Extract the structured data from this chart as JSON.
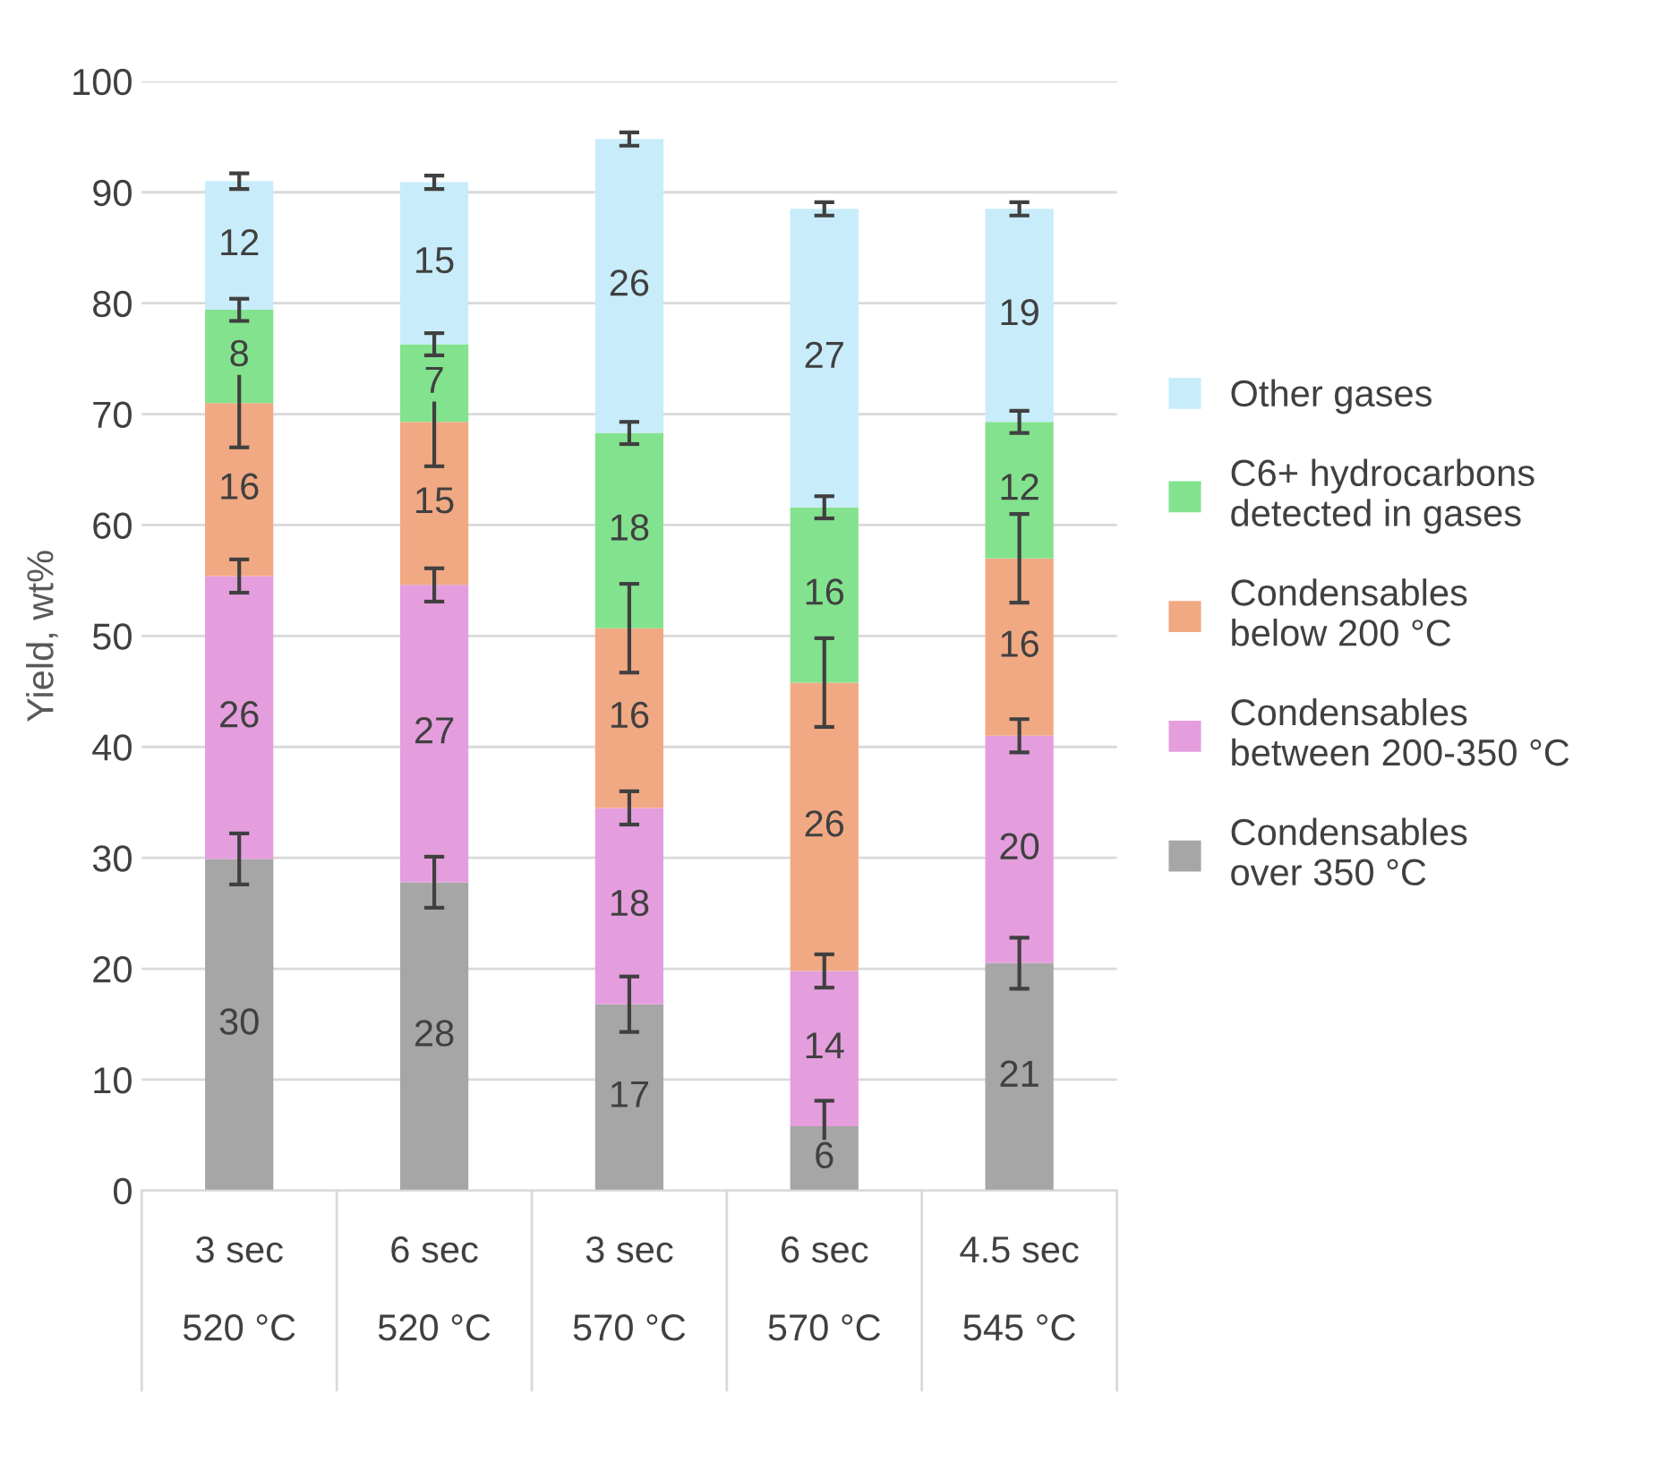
{
  "chart_data": {
    "type": "bar",
    "stacked": true,
    "ylabel": "Yield, wt%",
    "categories": [
      "3 sec\n520 °C",
      "6 sec\n520 °C",
      "3 sec\n570 °C",
      "6 sec\n570 °C",
      "4.5 sec\n545 °C"
    ],
    "series": [
      {
        "name": "Condensables over 350 °C",
        "color": "#a6a6a6",
        "values": [
          29.9,
          27.8,
          16.8,
          5.8,
          20.5
        ],
        "value_labels": [
          "30",
          "28",
          "17",
          "6",
          "21"
        ],
        "errors": [
          2.3,
          2.3,
          2.5,
          2.3,
          2.3
        ]
      },
      {
        "name": "Condensables between 200-350 °C",
        "color": "#e49edd",
        "values": [
          25.5,
          26.8,
          17.7,
          14.0,
          20.5
        ],
        "value_labels": [
          "26",
          "27",
          "18",
          "14",
          "20"
        ],
        "errors": [
          1.5,
          1.5,
          1.5,
          1.5,
          1.5
        ]
      },
      {
        "name": "Condensables below 200 °C",
        "color": "#f1a983",
        "values": [
          15.6,
          14.7,
          16.2,
          26.0,
          16.0
        ],
        "value_labels": [
          "16",
          "15",
          "16",
          "26",
          "16"
        ],
        "errors": [
          4,
          4,
          4,
          4,
          4
        ]
      },
      {
        "name": "C6+ hydrocarbons detected in gases",
        "color": "#83e28e",
        "values": [
          8.4,
          7.0,
          17.6,
          15.8,
          12.3
        ],
        "value_labels": [
          "8",
          "7",
          "18",
          "16",
          "12"
        ],
        "errors": [
          1,
          1,
          1,
          1,
          1
        ]
      },
      {
        "name": "Other gases",
        "color": "#c8ecfa",
        "values": [
          11.6,
          14.6,
          26.5,
          26.9,
          19.2
        ],
        "value_labels": [
          "12",
          "15",
          "26",
          "27",
          "19"
        ],
        "errors": [
          0.7,
          0.6,
          0.6,
          0.6,
          0.6
        ]
      }
    ],
    "ylim": [
      0,
      100
    ],
    "yticks": [
      0,
      10,
      20,
      30,
      40,
      50,
      60,
      70,
      80,
      90,
      100
    ],
    "grid": "y",
    "legend": "right"
  }
}
